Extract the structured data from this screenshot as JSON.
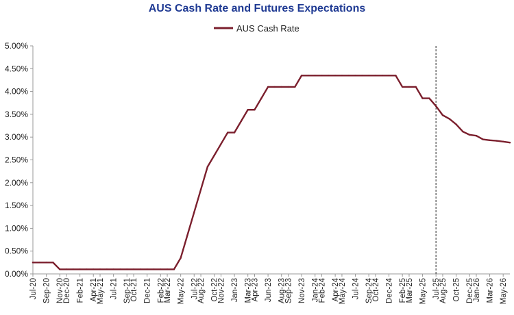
{
  "chart_data": {
    "type": "line",
    "title": "AUS Cash Rate and Futures Expectations",
    "legend": {
      "label": "AUS Cash Rate",
      "placement": "top-center"
    },
    "colors": {
      "line": "#7b1f2d",
      "title": "#1f3a93",
      "axis": "#999999",
      "marker": "#444444"
    },
    "ylim": [
      0,
      5
    ],
    "y_ticks": [
      "0.00%",
      "0.50%",
      "1.00%",
      "1.50%",
      "2.00%",
      "2.50%",
      "3.00%",
      "3.50%",
      "4.00%",
      "4.50%",
      "5.00%"
    ],
    "y_tick_values": [
      0,
      0.5,
      1,
      1.5,
      2,
      2.5,
      3,
      3.5,
      4,
      4.5,
      5
    ],
    "x_tick_labels": [
      "Jul-20",
      "Sep-20",
      "Nov-20",
      "Dec-20",
      "Feb-21",
      "Apr-21",
      "May-21",
      "Jul-21",
      "Sep-21",
      "Oct-21",
      "Dec-21",
      "Feb-22",
      "Mar-22",
      "May-22",
      "Jul-22",
      "Aug-22",
      "Oct-22",
      "Nov-22",
      "Jan-23",
      "Mar-23",
      "Apr-23",
      "Jun-23",
      "Aug-23",
      "Sep-23",
      "Nov-23",
      "Jan-24",
      "Feb-24",
      "Apr-24",
      "May-24",
      "Jul-24",
      "Sep-24",
      "Oct-24",
      "Dec-24",
      "Feb-25",
      "Mar-25",
      "May-25",
      "Jul-25",
      "Aug-25",
      "Oct-25",
      "Dec-25",
      "Jan-26",
      "Mar-26",
      "May-26"
    ],
    "grid": false,
    "forecast_marker": "Jul-25",
    "series": [
      {
        "name": "AUS Cash Rate",
        "x": [
          "2020-07",
          "2020-08",
          "2020-09",
          "2020-10",
          "2020-11",
          "2020-12",
          "2021-01",
          "2021-02",
          "2021-03",
          "2021-04",
          "2021-05",
          "2021-06",
          "2021-07",
          "2021-08",
          "2021-09",
          "2021-10",
          "2021-11",
          "2021-12",
          "2022-01",
          "2022-02",
          "2022-03",
          "2022-04",
          "2022-05",
          "2022-06",
          "2022-07",
          "2022-08",
          "2022-09",
          "2022-10",
          "2022-11",
          "2022-12",
          "2023-01",
          "2023-02",
          "2023-03",
          "2023-04",
          "2023-05",
          "2023-06",
          "2023-07",
          "2023-08",
          "2023-09",
          "2023-10",
          "2023-11",
          "2023-12",
          "2024-01",
          "2024-02",
          "2024-03",
          "2024-04",
          "2024-05",
          "2024-06",
          "2024-07",
          "2024-08",
          "2024-09",
          "2024-10",
          "2024-11",
          "2024-12",
          "2025-01",
          "2025-02",
          "2025-03",
          "2025-04",
          "2025-05",
          "2025-06",
          "2025-07",
          "2025-08",
          "2025-09",
          "2025-10",
          "2025-11",
          "2025-12",
          "2026-01",
          "2026-02",
          "2026-03",
          "2026-04",
          "2026-05",
          "2026-06"
        ],
        "values": [
          0.25,
          0.25,
          0.25,
          0.25,
          0.1,
          0.1,
          0.1,
          0.1,
          0.1,
          0.1,
          0.1,
          0.1,
          0.1,
          0.1,
          0.1,
          0.1,
          0.1,
          0.1,
          0.1,
          0.1,
          0.1,
          0.1,
          0.35,
          0.85,
          1.35,
          1.85,
          2.35,
          2.6,
          2.85,
          3.1,
          3.1,
          3.35,
          3.6,
          3.6,
          3.85,
          4.1,
          4.1,
          4.1,
          4.1,
          4.1,
          4.35,
          4.35,
          4.35,
          4.35,
          4.35,
          4.35,
          4.35,
          4.35,
          4.35,
          4.35,
          4.35,
          4.35,
          4.35,
          4.35,
          4.35,
          4.1,
          4.1,
          4.1,
          3.85,
          3.85,
          3.68,
          3.48,
          3.4,
          3.28,
          3.12,
          3.05,
          3.03,
          2.95,
          2.93,
          2.92,
          2.9,
          2.88
        ]
      }
    ]
  }
}
